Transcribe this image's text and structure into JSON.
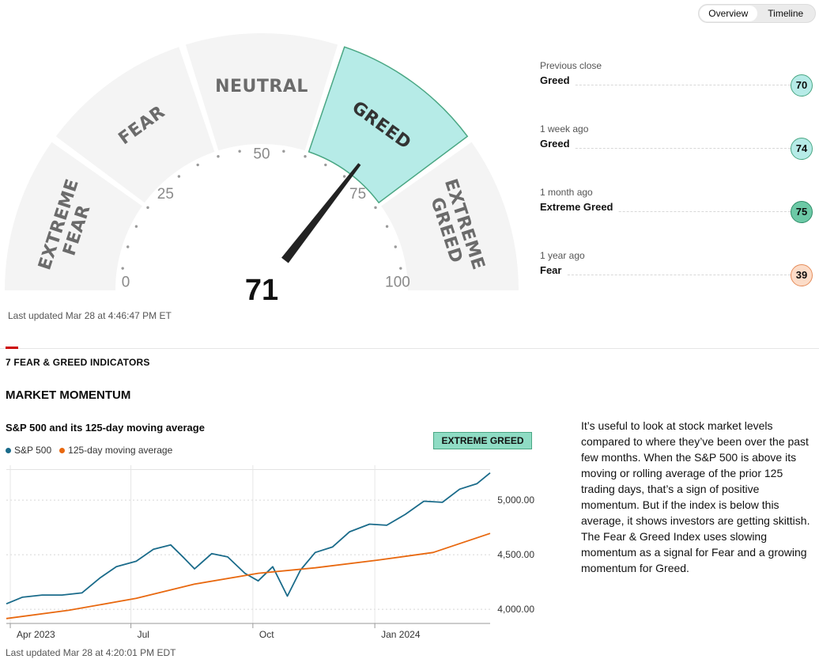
{
  "view_toggle": {
    "options": [
      "Overview",
      "Timeline"
    ],
    "active": "Overview"
  },
  "gauge": {
    "segments": [
      {
        "label_lines": [
          "EXTREME",
          "FEAR"
        ],
        "active": false
      },
      {
        "label_lines": [
          "FEAR"
        ],
        "active": false
      },
      {
        "label_lines": [
          "NEUTRAL"
        ],
        "active": false
      },
      {
        "label_lines": [
          "GREED"
        ],
        "active": true
      },
      {
        "label_lines": [
          "EXTREME",
          "GREED"
        ],
        "active": false
      }
    ],
    "tick_labels": [
      "0",
      "25",
      "50",
      "75",
      "100"
    ],
    "score": 71,
    "score_text": "71",
    "active_color": "#b6ebe7",
    "active_stroke": "#4aa784"
  },
  "last_updated_gauge": "Last updated Mar 28 at 4:46:47 PM ET",
  "history": [
    {
      "when": "Previous close",
      "label": "Greed",
      "value": "70",
      "badge_bg": "#b6ebe7",
      "badge_border": "#4aa784"
    },
    {
      "when": "1 week ago",
      "label": "Greed",
      "value": "74",
      "badge_bg": "#b6ebe7",
      "badge_border": "#4aa784"
    },
    {
      "when": "1 month ago",
      "label": "Extreme Greed",
      "value": "75",
      "badge_bg": "#6cc9a6",
      "badge_border": "#2f8d69"
    },
    {
      "when": "1 year ago",
      "label": "Fear",
      "value": "39",
      "badge_bg": "#fcdcc8",
      "badge_border": "#e58d5b"
    }
  ],
  "indicators_title": "7 FEAR & GREED INDICATORS",
  "indicator": {
    "name": "MARKET MOMENTUM",
    "chart_title": "S&P 500 and its 125-day moving average",
    "rating": "EXTREME GREED",
    "description": "It’s useful to look at stock market levels compared to where they’ve been over the past few months. When the S&P 500 is above its moving or rolling average of the prior 125 trading days, that’s a sign of positive momentum. But if the index is below this average, it shows investors are getting skittish. The Fear & Greed Index uses slowing momentum as a signal for Fear and a growing momentum for Greed.",
    "last_updated": "Last updated Mar 28 at 4:20:01 PM EDT"
  },
  "chart_data": {
    "type": "line",
    "title": "S&P 500 and its 125-day moving average",
    "series": [
      {
        "name": "S&P 500",
        "color": "#1a6b8a",
        "x": [
          "2023-03-29",
          "2023-04-10",
          "2023-04-25",
          "2023-05-10",
          "2023-05-25",
          "2023-06-08",
          "2023-06-20",
          "2023-07-05",
          "2023-07-18",
          "2023-07-31",
          "2023-08-10",
          "2023-08-18",
          "2023-08-31",
          "2023-09-12",
          "2023-09-25",
          "2023-10-05",
          "2023-10-16",
          "2023-10-27",
          "2023-11-06",
          "2023-11-17",
          "2023-11-30",
          "2023-12-13",
          "2023-12-28",
          "2024-01-10",
          "2024-01-24",
          "2024-02-07",
          "2024-02-21",
          "2024-03-05",
          "2024-03-18",
          "2024-03-28"
        ],
        "y": [
          4050,
          4110,
          4130,
          4130,
          4150,
          4290,
          4390,
          4440,
          4550,
          4590,
          4470,
          4370,
          4510,
          4480,
          4330,
          4260,
          4390,
          4120,
          4360,
          4520,
          4570,
          4710,
          4780,
          4770,
          4870,
          4990,
          4980,
          5100,
          5150,
          5250
        ]
      },
      {
        "name": "125-day moving average",
        "color": "#e8680f",
        "x": [
          "2023-03-29",
          "2023-05-15",
          "2023-07-05",
          "2023-08-18",
          "2023-10-05",
          "2023-11-17",
          "2024-01-03",
          "2024-02-14",
          "2024-03-28"
        ],
        "y": [
          3915,
          3990,
          4100,
          4230,
          4330,
          4380,
          4450,
          4520,
          4695
        ]
      }
    ],
    "x_ticks": [
      "Apr 2023",
      "Jul",
      "Oct",
      "Jan 2024"
    ],
    "y_ticks": [
      "4,000.00",
      "4,500.00",
      "5,000.00"
    ],
    "ylim": [
      3870,
      5320
    ],
    "grid": true,
    "legend": "top-left"
  }
}
